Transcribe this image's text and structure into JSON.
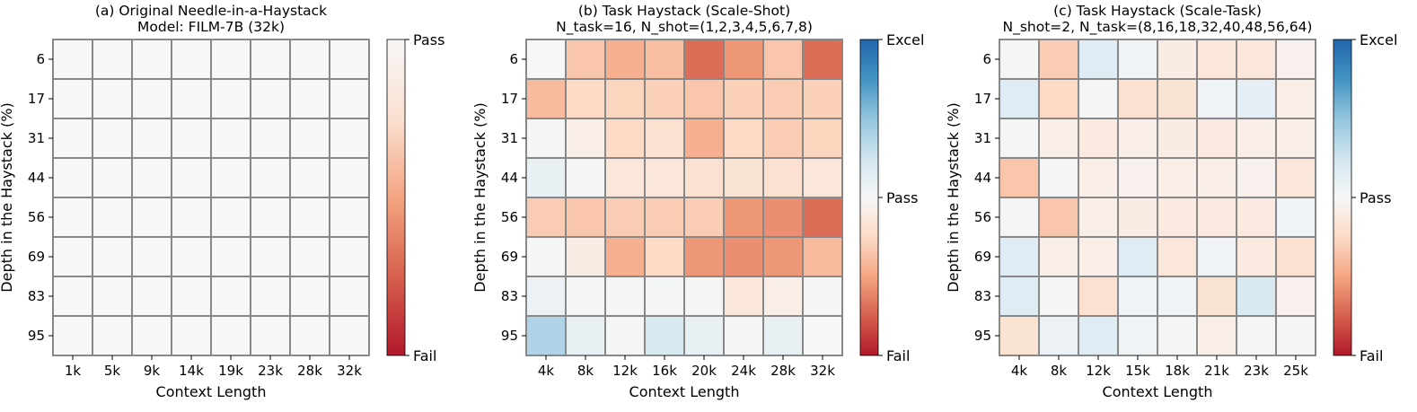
{
  "chart_data": [
    {
      "type": "heatmap",
      "title": "(a) Original Needle-in-a-Haystack",
      "subtitle": "Model: FILM-7B (32k)",
      "xlabel": "Context Length",
      "ylabel": "Depth in the Haystack (%)",
      "x": [
        "1k",
        "5k",
        "9k",
        "14k",
        "19k",
        "23k",
        "28k",
        "32k"
      ],
      "y": [
        "6",
        "17",
        "31",
        "44",
        "56",
        "69",
        "83",
        "95"
      ],
      "colorbar": {
        "scale": "Pass-to-Fail",
        "ticks": [
          "Pass",
          "Fail"
        ]
      },
      "values": [
        [
          0,
          0,
          0,
          0,
          0,
          0,
          0,
          0
        ],
        [
          0,
          0,
          0,
          0,
          0,
          0,
          0,
          0
        ],
        [
          0,
          0,
          0,
          0,
          0,
          0,
          0,
          0
        ],
        [
          0,
          0,
          0,
          0,
          0,
          0,
          0,
          0
        ],
        [
          0,
          0,
          0,
          0,
          0,
          0,
          0,
          0
        ],
        [
          0,
          0,
          0,
          0,
          0,
          0,
          0,
          0
        ],
        [
          0,
          0,
          0,
          0,
          0,
          0,
          0,
          0
        ],
        [
          0,
          0,
          0,
          0,
          0,
          0,
          0,
          0
        ]
      ]
    },
    {
      "type": "heatmap",
      "title": "(b) Task Haystack (Scale-Shot)",
      "subtitle": "N_task=16, N_shot=(1,2,3,4,5,6,7,8)",
      "xlabel": "Context Length",
      "ylabel": "Depth in the Haystack (%)",
      "x": [
        "4k",
        "8k",
        "12k",
        "16k",
        "20k",
        "24k",
        "28k",
        "32k"
      ],
      "y": [
        "6",
        "17",
        "31",
        "44",
        "56",
        "69",
        "83",
        "95"
      ],
      "colorbar": {
        "scale": "Fail-Pass-Excel",
        "ticks": [
          "Excel",
          "Pass",
          "Fail"
        ]
      },
      "values": [
        [
          0,
          -0.35,
          -0.45,
          -0.38,
          -0.7,
          -0.55,
          -0.35,
          -0.7
        ],
        [
          -0.4,
          -0.25,
          -0.28,
          -0.3,
          -0.35,
          -0.3,
          -0.32,
          -0.3
        ],
        [
          0.02,
          -0.08,
          -0.25,
          -0.2,
          -0.45,
          -0.25,
          -0.32,
          -0.28
        ],
        [
          0.1,
          0.02,
          -0.15,
          -0.15,
          -0.2,
          -0.18,
          -0.2,
          -0.15
        ],
        [
          -0.32,
          -0.35,
          -0.32,
          -0.32,
          -0.32,
          -0.55,
          -0.58,
          -0.7
        ],
        [
          0.02,
          -0.1,
          -0.45,
          -0.25,
          -0.55,
          -0.58,
          -0.55,
          -0.4
        ],
        [
          0.08,
          0.02,
          0.02,
          0.02,
          0.02,
          -0.15,
          -0.08,
          0.02
        ],
        [
          0.38,
          0.1,
          0.02,
          0.2,
          0.1,
          0.02,
          0.1,
          0
        ]
      ]
    },
    {
      "type": "heatmap",
      "title": "(c) Task Haystack (Scale-Task)",
      "subtitle": "N_shot=2, N_task=(8,16,18,32,40,48,56,64)",
      "xlabel": "Context Length",
      "ylabel": "Depth in the Haystack (%)",
      "x": [
        "4k",
        "8k",
        "12k",
        "15k",
        "18k",
        "21k",
        "23k",
        "25k"
      ],
      "y": [
        "6",
        "17",
        "31",
        "44",
        "56",
        "69",
        "83",
        "95"
      ],
      "colorbar": {
        "scale": "Fail-Pass-Excel",
        "ticks": [
          "Excel",
          "Pass",
          "Fail"
        ]
      },
      "values": [
        [
          0.02,
          -0.32,
          0.15,
          0.05,
          -0.1,
          -0.15,
          -0.15,
          -0.05
        ],
        [
          0.15,
          -0.25,
          0.02,
          -0.2,
          -0.18,
          0.05,
          0.12,
          -0.08
        ],
        [
          0.02,
          -0.08,
          -0.12,
          -0.08,
          -0.1,
          -0.12,
          -0.08,
          -0.08
        ],
        [
          -0.35,
          0.02,
          -0.08,
          -0.05,
          -0.08,
          -0.08,
          -0.05,
          -0.15
        ],
        [
          0.02,
          -0.35,
          -0.08,
          -0.1,
          -0.12,
          -0.12,
          -0.12,
          0.05
        ],
        [
          0.15,
          -0.08,
          -0.08,
          0.15,
          -0.15,
          0.05,
          -0.12,
          -0.2
        ],
        [
          0.15,
          0.02,
          -0.2,
          0.05,
          0.05,
          -0.18,
          0.2,
          -0.05
        ],
        [
          -0.18,
          0.08,
          0.15,
          0.05,
          0.02,
          -0.08,
          0.02,
          0.02
        ]
      ]
    }
  ]
}
